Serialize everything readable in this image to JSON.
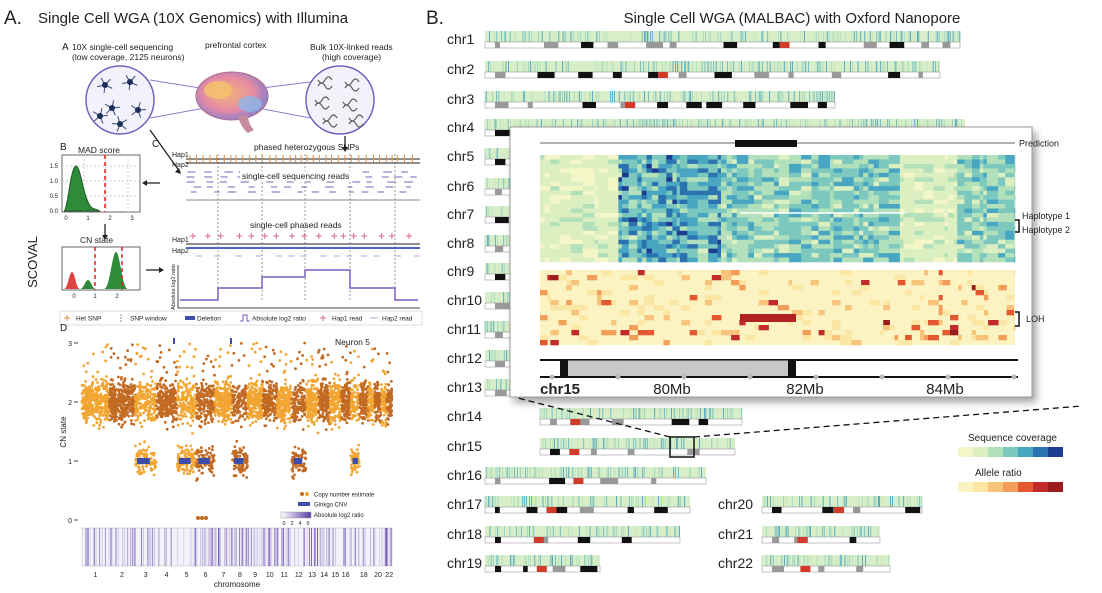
{
  "panel_a": {
    "letter": "A.",
    "title": "Single Cell WGA (10X Genomics) with Illumina",
    "side_label": "SCOVAL",
    "a": {
      "letter": "A",
      "left_label": [
        "10X single-cell sequencing",
        "(low coverage, 2125 neurons)"
      ],
      "center_label": "prefrontal cortex",
      "right_label": [
        "Bulk 10X-linked reads",
        "(high coverage)"
      ]
    },
    "b": {
      "letter": "B",
      "mad_title": "MAD score",
      "mad_yticks": [
        "1.5",
        "1.0",
        "0.5",
        "0.0"
      ],
      "mad_xticks": [
        "0",
        "1",
        "2",
        "3"
      ],
      "cn_title": "CN state",
      "cn_xticks": [
        "0",
        "1",
        "2"
      ]
    },
    "c": {
      "letter": "C",
      "snps": "phased heterozygous SNPs",
      "hap1": "Hap1",
      "hap2": "Hap2",
      "reads": "single-cell sequencing reads",
      "phased": "single-cell phased reads",
      "hap1b": "Hap1",
      "hap2b": "Hap2",
      "ratio_axis": "Absolute log2 ratio"
    },
    "legend": [
      "Het SNP",
      "SNP window",
      "Deletion",
      "Absolute log2 ratio",
      "Hap1 read",
      "Hap2 read"
    ],
    "d": {
      "letter": "D",
      "title": "Neuron 5",
      "ylabel": "CN state",
      "yticks": [
        "3",
        "2",
        "1",
        "0"
      ],
      "xlabel": "chromosome",
      "xticks": [
        "1",
        "2",
        "3",
        "4",
        "5",
        "6",
        "7",
        "8",
        "9",
        "10",
        "11",
        "12",
        "13",
        "14",
        "15",
        "16",
        "18",
        "20",
        "22"
      ],
      "legend": [
        "Copy number estimate",
        "Ginkgo CNV",
        "Absolute log2 ratio"
      ],
      "scale": [
        "0",
        "2",
        "4",
        "6"
      ]
    }
  },
  "panel_b": {
    "letter": "B.",
    "title": "Single Cell WGA (MALBAC) with Oxford Nanopore",
    "chromosomes": [
      "chr1",
      "chr2",
      "chr3",
      "chr4",
      "chr5",
      "chr6",
      "chr7",
      "chr8",
      "chr9",
      "chr10",
      "chr11",
      "chr12",
      "chr13",
      "chr14",
      "chr15",
      "chr16",
      "chr17",
      "chr18",
      "chr19",
      "chr20",
      "chr21",
      "chr22"
    ],
    "inset": {
      "prediction": "Prediction",
      "haplotype1": "Haplotype 1",
      "haplotype2": "Haplotype 2",
      "loh": "LOH",
      "chromosome": "chr15",
      "positions": [
        "80Mb",
        "82Mb",
        "84Mb"
      ]
    },
    "legend": {
      "coverage": "Sequence coverage",
      "allele": "Allele ratio"
    }
  }
}
